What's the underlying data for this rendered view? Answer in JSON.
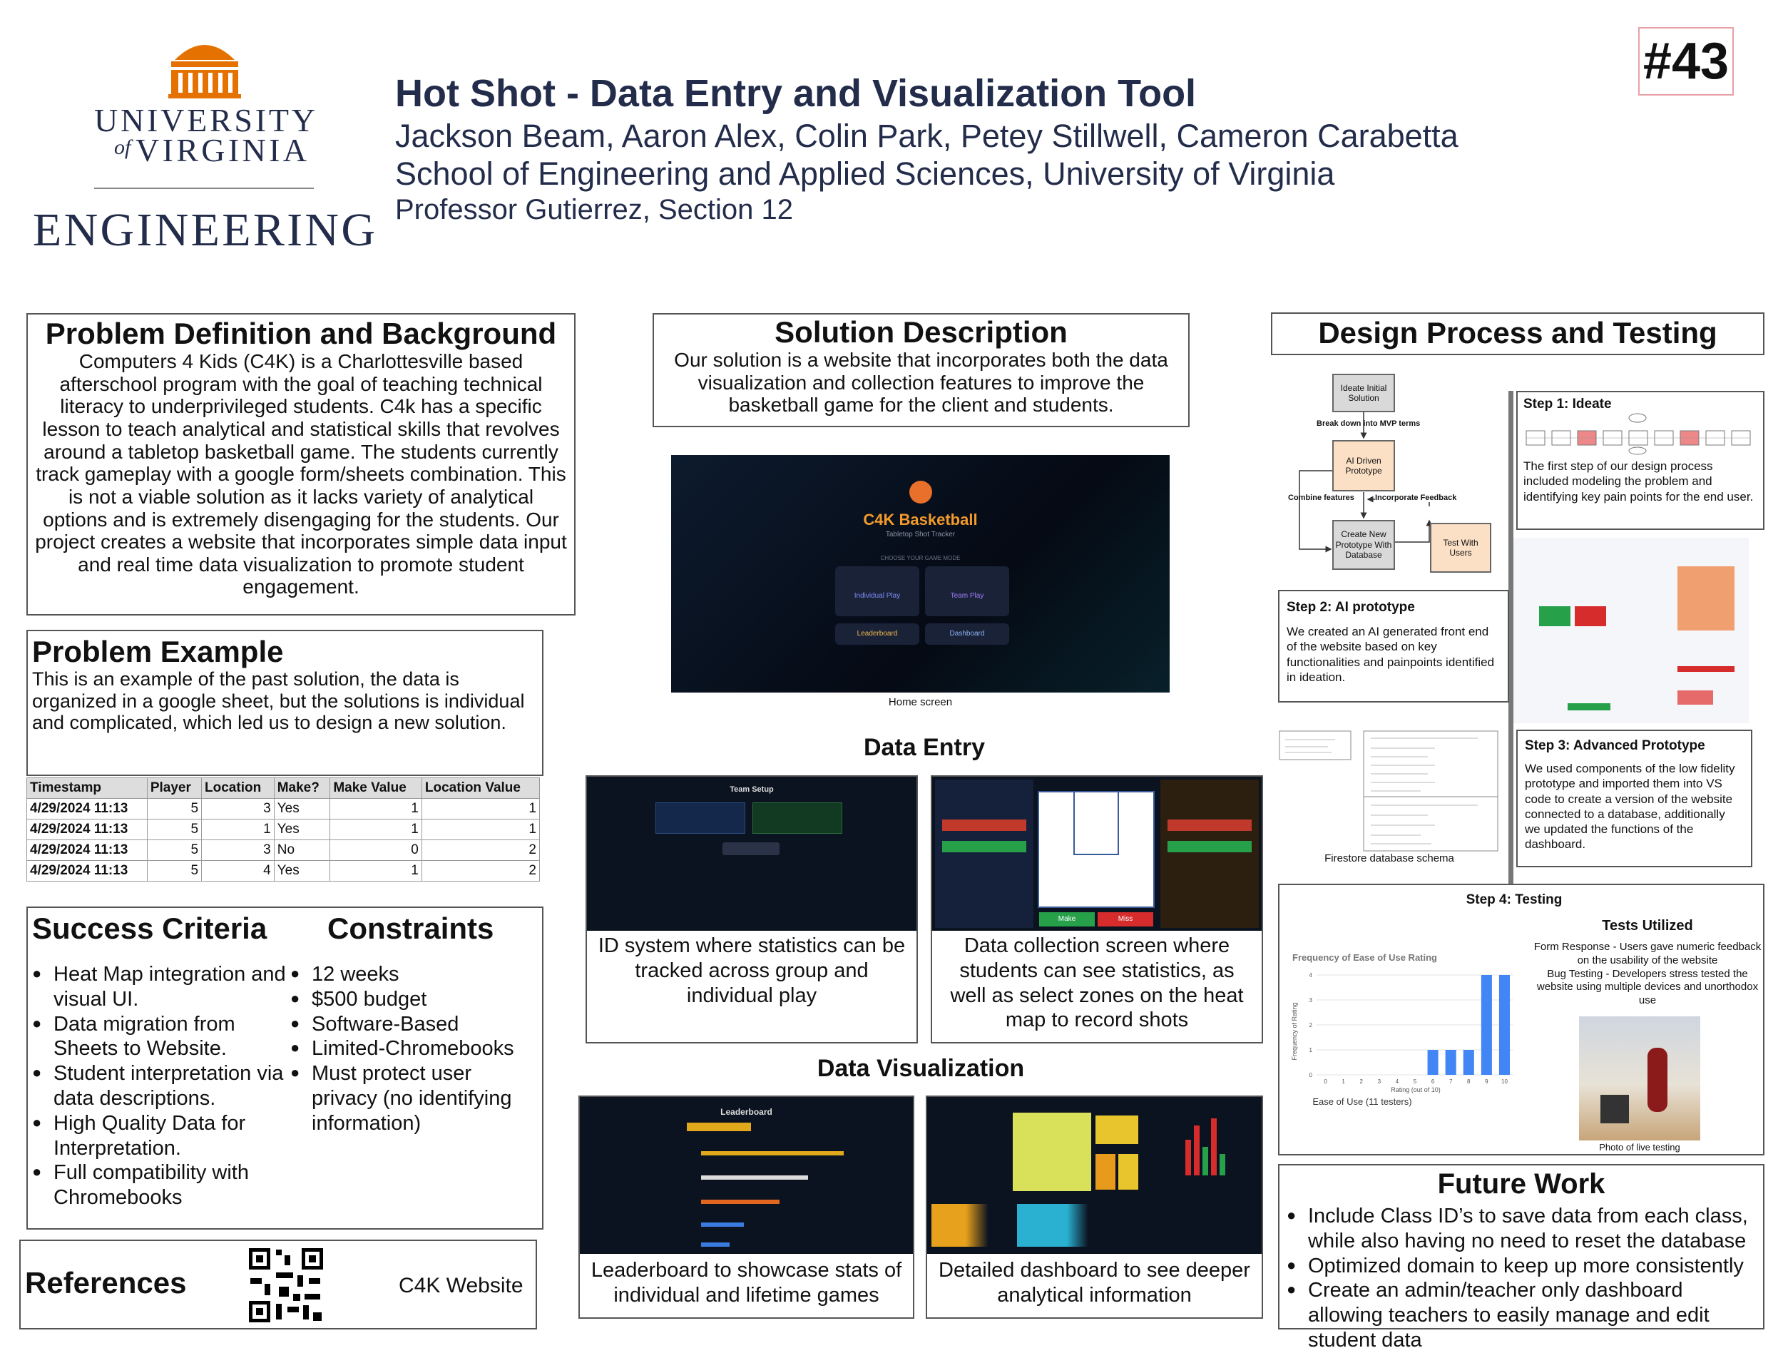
{
  "logo": {
    "university": "UNIVERSITY",
    "of": "of",
    "virginia": "VIRGINIA",
    "engineering": "ENGINEERING"
  },
  "header": {
    "title": "Hot Shot - Data Entry and Visualization Tool",
    "authors": "Jackson Beam, Aaron Alex, Colin Park, Petey Stillwell, Cameron Carabetta",
    "school": "School of Engineering and Applied Sciences, University of Virginia",
    "professor": "Professor Gutierrez, Section 12",
    "number": "#43"
  },
  "problem_definition": {
    "heading": "Problem Definition and Background",
    "body": "Computers 4 Kids (C4K) is a Charlottesville based afterschool program with the goal of teaching technical literacy to underprivileged students. C4k has a specific lesson to teach analytical and statistical skills that revolves around a tabletop basketball game. The students currently track gameplay with a google form/sheets combination. This is not a viable solution as it lacks variety of analytical options and is extremely disengaging for the students. Our project creates a website that incorporates simple data input and real time data visualization to promote student engagement."
  },
  "problem_example": {
    "heading": "Problem Example",
    "body": "This is an example of the past solution, the data is organized in a google sheet, but the solutions is individual and complicated, which led us to design a new solution.",
    "table": {
      "columns": [
        "Timestamp",
        "Player",
        "Location",
        "Make?",
        "Make Value",
        "Location Value"
      ],
      "rows": [
        [
          "4/29/2024 11:13",
          "5",
          "3",
          "Yes",
          "1",
          "1"
        ],
        [
          "4/29/2024 11:13",
          "5",
          "1",
          "Yes",
          "1",
          "1"
        ],
        [
          "4/29/2024 11:13",
          "5",
          "3",
          "No",
          "0",
          "2"
        ],
        [
          "4/29/2024 11:13",
          "5",
          "4",
          "Yes",
          "1",
          "2"
        ]
      ]
    }
  },
  "success_criteria": {
    "heading": "Success Criteria",
    "items": [
      "Heat Map integration and visual UI.",
      "Data migration from Sheets to Website.",
      "Student interpretation via data descriptions.",
      "High Quality Data for Interpretation.",
      "Full compatibility with Chromebooks"
    ]
  },
  "constraints": {
    "heading": "Constraints",
    "items": [
      "12 weeks",
      "$500 budget",
      "Software-Based",
      "Limited-Chromebooks",
      "Must protect user privacy (no identifying information)"
    ]
  },
  "references": {
    "heading": "References",
    "link": "C4K Website"
  },
  "solution": {
    "heading": "Solution Description",
    "body": "Our solution is a website that incorporates both the data visualization and collection features to improve the basketball game for the client and students.",
    "home_screen": {
      "title": "C4K Basketball",
      "subtitle": "Tabletop Shot Tracker",
      "prompt": "CHOOSE YOUR GAME MODE",
      "buttons": [
        "Individual Play",
        "Team Play",
        "Leaderboard",
        "Dashboard"
      ],
      "caption": "Home screen"
    }
  },
  "data_entry": {
    "heading": "Data Entry",
    "team_setup": "Team Setup",
    "make": "Make",
    "miss": "Miss",
    "captions": [
      "ID system where statistics can be tracked across group and individual play",
      "Data collection screen where students can see statistics, as well as select zones on the heat map to record shots"
    ]
  },
  "data_visualization": {
    "heading": "Data Visualization",
    "leaderboard": "Leaderboard",
    "captions": [
      "Leaderboard to showcase stats of individual and lifetime games",
      "Detailed dashboard to see deeper analytical information"
    ]
  },
  "design": {
    "heading": "Design Process and Testing",
    "flow": {
      "nodes": [
        "Ideate Initial Solution",
        "AI Driven Prototype",
        "Create New Prototype With Database",
        "Test With Users"
      ],
      "edges": [
        "Break down into MVP terms",
        "Combine features",
        "Incorporate Feedback"
      ]
    },
    "step1": {
      "heading": "Step 1: Ideate",
      "body": "The first step of our design process included modeling the problem and identifying key pain points for the end user."
    },
    "step2": {
      "heading": "Step 2: AI prototype",
      "body": "We created an AI generated front end of the website based on key functionalities and painpoints identified in ideation."
    },
    "schema_caption": "Firestore database schema",
    "step3": {
      "heading": "Step 3: Advanced Prototype",
      "body": "We used components of the low fidelity prototype and imported them into VS code to create a version of the website connected to a database, additionally we updated the functions of the dashboard."
    },
    "step4": {
      "heading": "Step 4: Testing",
      "tests_heading": "Tests Utilized",
      "tests": [
        "Form Response - Users gave numeric feedback on the usability of the website",
        "Bug Testing - Developers stress tested the website using multiple devices and unorthodox use"
      ],
      "photo_caption": "Photo of live testing"
    }
  },
  "future_work": {
    "heading": "Future Work",
    "items": [
      "Include Class ID’s to save data from each class, while also having no need to reset the database",
      "Optimized domain to keep up more consistently",
      "Create an admin/teacher only dashboard allowing teachers to easily manage and edit student data"
    ]
  },
  "chart_data": {
    "type": "bar",
    "title": "Frequency of Ease of Use Rating",
    "x_label": "Rating (out of 10)",
    "y_label": "Frequency of Rating",
    "caption": "Ease of Use (11 testers)",
    "categories": [
      "0",
      "1",
      "2",
      "3",
      "4",
      "5",
      "6",
      "7",
      "8",
      "9",
      "10"
    ],
    "values": [
      0,
      0,
      0,
      0,
      0,
      0,
      1,
      1,
      1,
      4,
      4
    ],
    "color": "#4285f4",
    "ylim": [
      0,
      4
    ],
    "yticks": [
      0,
      1,
      2,
      3,
      4
    ],
    "grid": true
  }
}
